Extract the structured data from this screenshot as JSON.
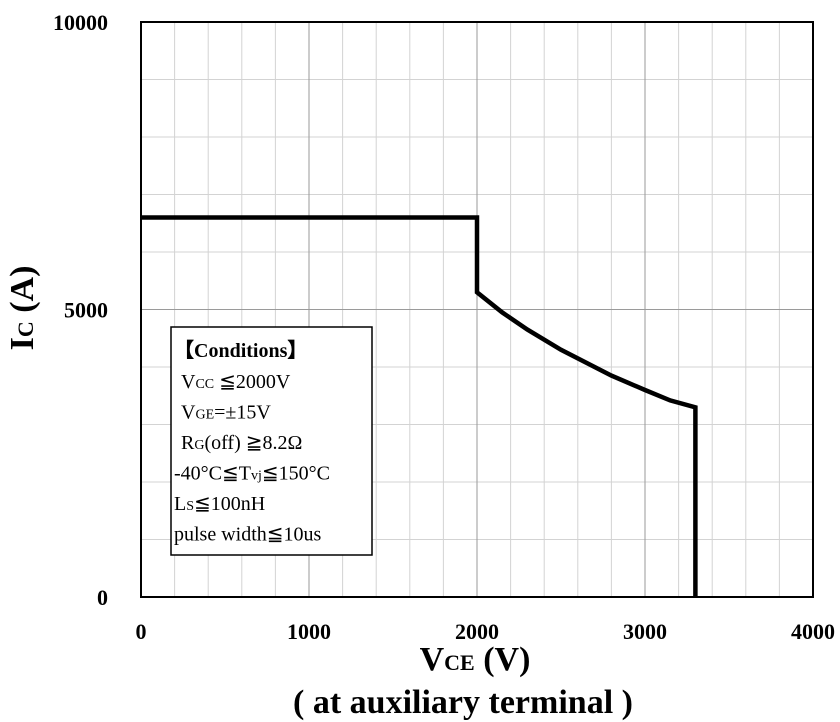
{
  "chart_data": {
    "type": "line",
    "x_axis": {
      "label_main": "V",
      "label_sub": "CE",
      "label_unit": " (V)",
      "note": "( at auxiliary terminal )",
      "range": [
        0,
        4000
      ],
      "ticks": [
        "0",
        "1000",
        "2000",
        "3000",
        "4000"
      ],
      "tick_values": [
        0,
        1000,
        2000,
        3000,
        4000
      ],
      "minor_step": 200
    },
    "y_axis": {
      "label_main": "I",
      "label_sub": "C",
      "label_unit": " (A)",
      "range": [
        0,
        10000
      ],
      "ticks": [
        "0",
        "5000",
        "10000"
      ],
      "tick_values": [
        0,
        5000,
        10000
      ],
      "minor_step": 1000
    },
    "grid": true,
    "series": [
      {
        "color": "#000000",
        "points": [
          [
            0,
            6600
          ],
          [
            2000,
            6600
          ],
          [
            2000,
            5300
          ],
          [
            2150,
            4950
          ],
          [
            2300,
            4650
          ],
          [
            2500,
            4300
          ],
          [
            2800,
            3850
          ],
          [
            3000,
            3600
          ],
          [
            3150,
            3420
          ],
          [
            3300,
            3300
          ],
          [
            3300,
            0
          ]
        ]
      }
    ],
    "conditions": {
      "title": "【Conditions】",
      "lines": [
        {
          "main": "V",
          "sub": "CC",
          "rest": " ≦2000V"
        },
        {
          "main": "V",
          "sub": "GE",
          "rest": "=±15V"
        },
        {
          "main": "R",
          "sub": "G",
          "rest": "(off) ≧8.2Ω"
        },
        {
          "main": "-40°C≦T",
          "sub": "vj",
          "rest": "≦150°C"
        },
        {
          "main": "L",
          "sub": "S",
          "rest": "≦100nH"
        },
        {
          "main": "pulse width≦10us",
          "sub": "",
          "rest": ""
        }
      ]
    }
  }
}
